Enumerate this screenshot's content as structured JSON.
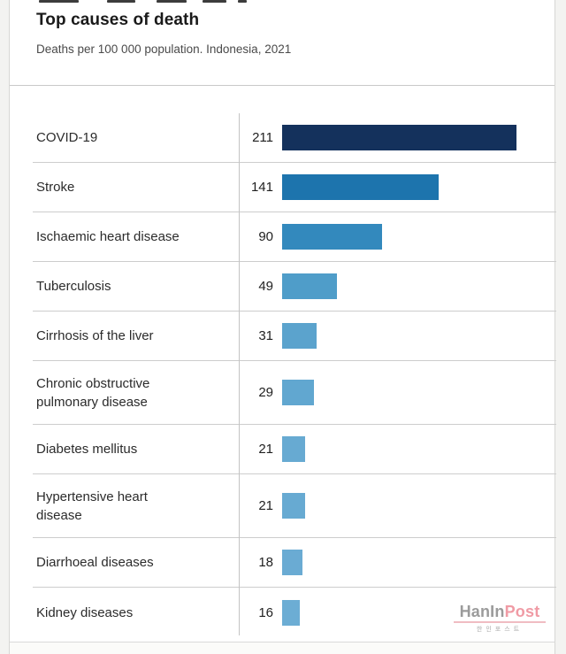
{
  "header": {
    "title": "Top causes of death",
    "subtitle": "Deaths per 100 000 population. Indonesia, 2021"
  },
  "chart_data": {
    "type": "bar",
    "orientation": "horizontal",
    "title": "Top causes of death",
    "subtitle": "Deaths per 100 000 population. Indonesia, 2021",
    "xlim": [
      0,
      211
    ],
    "legend": "none",
    "grid": "row-dividers",
    "value_labels": "left-of-bar",
    "categories": [
      "COVID-19",
      "Stroke",
      "Ischaemic heart disease",
      "Tuberculosis",
      "Cirrhosis of the liver",
      "Chronic obstructive pulmonary disease",
      "Diabetes mellitus",
      "Hypertensive heart disease",
      "Diarrhoeal diseases",
      "Kidney diseases"
    ],
    "values": [
      211,
      141,
      90,
      49,
      31,
      29,
      21,
      21,
      18,
      16
    ],
    "rows": [
      {
        "label": "COVID-19",
        "value": 211,
        "color": "#14315c"
      },
      {
        "label": "Stroke",
        "value": 141,
        "color": "#1d74ad"
      },
      {
        "label": "Ischaemic heart disease",
        "value": 90,
        "color": "#3389bd"
      },
      {
        "label": "Tuberculosis",
        "value": 49,
        "color": "#4f9dc9"
      },
      {
        "label": "Cirrhosis of the liver",
        "value": 31,
        "color": "#5ba3cd"
      },
      {
        "label": "Chronic obstructive\npulmonary disease",
        "value": 29,
        "color": "#61a7d0"
      },
      {
        "label": "Diabetes mellitus",
        "value": 21,
        "color": "#67aad2"
      },
      {
        "label": "Hypertensive heart\ndisease",
        "value": 21,
        "color": "#67aad2"
      },
      {
        "label": "Diarrhoeal diseases",
        "value": 18,
        "color": "#6aabd3"
      },
      {
        "label": "Kidney diseases",
        "value": 16,
        "color": "#6cadd4"
      }
    ]
  },
  "watermark": {
    "text_primary": "HanIn",
    "text_accent": "Post",
    "subtext": "한인포스트",
    "color_primary": "#9b9b9b",
    "color_accent": "#f09ba5"
  }
}
